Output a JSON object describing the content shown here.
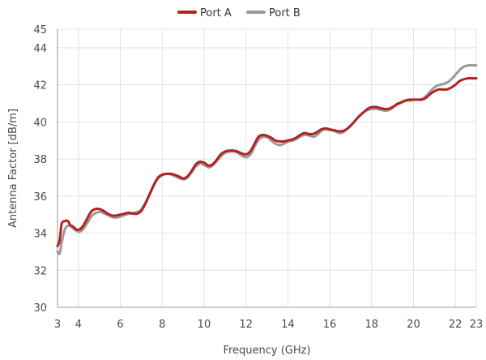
{
  "chart_data": {
    "type": "line",
    "title": "",
    "xlabel": "Frequency (GHz)",
    "ylabel": "Antenna Factor [dB/m]",
    "xlim": [
      3,
      23
    ],
    "ylim": [
      30,
      45
    ],
    "xticks": [
      3,
      4,
      6,
      8,
      10,
      12,
      14,
      16,
      18,
      20,
      22,
      23
    ],
    "yticks": [
      30,
      32,
      34,
      36,
      38,
      40,
      42,
      44,
      45
    ],
    "grid": true,
    "legend_position": "top-center",
    "series": [
      {
        "name": "Port A",
        "color": "#b22222",
        "points": [
          [
            3.0,
            33.3
          ],
          [
            3.1,
            33.6
          ],
          [
            3.2,
            34.5
          ],
          [
            3.35,
            34.65
          ],
          [
            3.5,
            34.65
          ],
          [
            3.6,
            34.45
          ],
          [
            3.75,
            34.35
          ],
          [
            3.9,
            34.2
          ],
          [
            4.05,
            34.2
          ],
          [
            4.2,
            34.35
          ],
          [
            4.4,
            34.75
          ],
          [
            4.6,
            35.15
          ],
          [
            4.8,
            35.3
          ],
          [
            5.0,
            35.3
          ],
          [
            5.2,
            35.2
          ],
          [
            5.4,
            35.05
          ],
          [
            5.6,
            34.95
          ],
          [
            5.8,
            34.95
          ],
          [
            6.0,
            35.0
          ],
          [
            6.2,
            35.05
          ],
          [
            6.4,
            35.1
          ],
          [
            6.6,
            35.05
          ],
          [
            6.8,
            35.05
          ],
          [
            7.0,
            35.2
          ],
          [
            7.2,
            35.6
          ],
          [
            7.4,
            36.1
          ],
          [
            7.6,
            36.6
          ],
          [
            7.8,
            37.0
          ],
          [
            8.0,
            37.15
          ],
          [
            8.2,
            37.2
          ],
          [
            8.4,
            37.2
          ],
          [
            8.6,
            37.15
          ],
          [
            8.8,
            37.05
          ],
          [
            9.0,
            36.95
          ],
          [
            9.2,
            37.05
          ],
          [
            9.4,
            37.35
          ],
          [
            9.6,
            37.7
          ],
          [
            9.8,
            37.85
          ],
          [
            10.0,
            37.8
          ],
          [
            10.2,
            37.65
          ],
          [
            10.4,
            37.7
          ],
          [
            10.6,
            37.95
          ],
          [
            10.8,
            38.25
          ],
          [
            11.0,
            38.4
          ],
          [
            11.2,
            38.45
          ],
          [
            11.4,
            38.45
          ],
          [
            11.6,
            38.4
          ],
          [
            11.8,
            38.3
          ],
          [
            12.0,
            38.25
          ],
          [
            12.2,
            38.4
          ],
          [
            12.4,
            38.8
          ],
          [
            12.6,
            39.2
          ],
          [
            12.8,
            39.3
          ],
          [
            13.0,
            39.25
          ],
          [
            13.2,
            39.15
          ],
          [
            13.4,
            39.0
          ],
          [
            13.6,
            38.95
          ],
          [
            13.8,
            38.95
          ],
          [
            14.0,
            39.0
          ],
          [
            14.2,
            39.05
          ],
          [
            14.4,
            39.15
          ],
          [
            14.6,
            39.3
          ],
          [
            14.8,
            39.4
          ],
          [
            15.0,
            39.35
          ],
          [
            15.2,
            39.35
          ],
          [
            15.4,
            39.45
          ],
          [
            15.6,
            39.6
          ],
          [
            15.8,
            39.65
          ],
          [
            16.0,
            39.6
          ],
          [
            16.2,
            39.55
          ],
          [
            16.4,
            39.5
          ],
          [
            16.6,
            39.5
          ],
          [
            16.8,
            39.6
          ],
          [
            17.0,
            39.8
          ],
          [
            17.2,
            40.05
          ],
          [
            17.4,
            40.3
          ],
          [
            17.6,
            40.5
          ],
          [
            17.8,
            40.7
          ],
          [
            18.0,
            40.8
          ],
          [
            18.2,
            40.8
          ],
          [
            18.4,
            40.75
          ],
          [
            18.6,
            40.7
          ],
          [
            18.8,
            40.7
          ],
          [
            19.0,
            40.8
          ],
          [
            19.2,
            40.95
          ],
          [
            19.4,
            41.05
          ],
          [
            19.6,
            41.15
          ],
          [
            19.8,
            41.2
          ],
          [
            20.0,
            41.2
          ],
          [
            20.2,
            41.2
          ],
          [
            20.4,
            41.2
          ],
          [
            20.6,
            41.3
          ],
          [
            20.8,
            41.5
          ],
          [
            21.0,
            41.65
          ],
          [
            21.2,
            41.75
          ],
          [
            21.4,
            41.75
          ],
          [
            21.6,
            41.75
          ],
          [
            21.8,
            41.85
          ],
          [
            22.0,
            42.0
          ],
          [
            22.2,
            42.2
          ],
          [
            22.4,
            42.3
          ],
          [
            22.6,
            42.35
          ],
          [
            22.8,
            42.35
          ],
          [
            23.0,
            42.35
          ]
        ]
      },
      {
        "name": "Port B",
        "color": "#999999",
        "points": [
          [
            3.0,
            33.0
          ],
          [
            3.1,
            32.9
          ],
          [
            3.2,
            33.5
          ],
          [
            3.35,
            34.2
          ],
          [
            3.5,
            34.4
          ],
          [
            3.65,
            34.35
          ],
          [
            3.8,
            34.2
          ],
          [
            3.95,
            34.1
          ],
          [
            4.1,
            34.1
          ],
          [
            4.25,
            34.25
          ],
          [
            4.45,
            34.6
          ],
          [
            4.65,
            34.95
          ],
          [
            4.85,
            35.1
          ],
          [
            5.05,
            35.15
          ],
          [
            5.25,
            35.05
          ],
          [
            5.45,
            34.95
          ],
          [
            5.65,
            34.85
          ],
          [
            5.85,
            34.85
          ],
          [
            6.05,
            34.9
          ],
          [
            6.25,
            35.0
          ],
          [
            6.45,
            35.05
          ],
          [
            6.65,
            35.1
          ],
          [
            6.85,
            35.15
          ],
          [
            7.05,
            35.35
          ],
          [
            7.25,
            35.75
          ],
          [
            7.45,
            36.2
          ],
          [
            7.65,
            36.7
          ],
          [
            7.85,
            37.0
          ],
          [
            8.05,
            37.15
          ],
          [
            8.25,
            37.2
          ],
          [
            8.45,
            37.15
          ],
          [
            8.65,
            37.05
          ],
          [
            8.85,
            36.95
          ],
          [
            9.05,
            36.9
          ],
          [
            9.25,
            37.05
          ],
          [
            9.45,
            37.35
          ],
          [
            9.65,
            37.65
          ],
          [
            9.85,
            37.75
          ],
          [
            10.05,
            37.65
          ],
          [
            10.25,
            37.55
          ],
          [
            10.45,
            37.7
          ],
          [
            10.65,
            37.95
          ],
          [
            10.85,
            38.2
          ],
          [
            11.05,
            38.35
          ],
          [
            11.25,
            38.4
          ],
          [
            11.45,
            38.4
          ],
          [
            11.65,
            38.3
          ],
          [
            11.85,
            38.15
          ],
          [
            12.05,
            38.1
          ],
          [
            12.25,
            38.3
          ],
          [
            12.45,
            38.75
          ],
          [
            12.65,
            39.1
          ],
          [
            12.85,
            39.2
          ],
          [
            13.05,
            39.15
          ],
          [
            13.25,
            38.95
          ],
          [
            13.45,
            38.8
          ],
          [
            13.65,
            38.75
          ],
          [
            13.85,
            38.85
          ],
          [
            14.05,
            38.95
          ],
          [
            14.25,
            39.0
          ],
          [
            14.45,
            39.1
          ],
          [
            14.65,
            39.25
          ],
          [
            14.85,
            39.3
          ],
          [
            15.05,
            39.25
          ],
          [
            15.25,
            39.2
          ],
          [
            15.45,
            39.35
          ],
          [
            15.65,
            39.55
          ],
          [
            15.85,
            39.6
          ],
          [
            16.05,
            39.55
          ],
          [
            16.25,
            39.5
          ],
          [
            16.45,
            39.4
          ],
          [
            16.65,
            39.45
          ],
          [
            16.85,
            39.65
          ],
          [
            17.05,
            39.85
          ],
          [
            17.25,
            40.1
          ],
          [
            17.45,
            40.35
          ],
          [
            17.65,
            40.55
          ],
          [
            17.85,
            40.65
          ],
          [
            18.05,
            40.7
          ],
          [
            18.25,
            40.7
          ],
          [
            18.45,
            40.65
          ],
          [
            18.65,
            40.6
          ],
          [
            18.85,
            40.65
          ],
          [
            19.05,
            40.8
          ],
          [
            19.25,
            40.95
          ],
          [
            19.45,
            41.05
          ],
          [
            19.65,
            41.15
          ],
          [
            19.85,
            41.15
          ],
          [
            20.05,
            41.2
          ],
          [
            20.25,
            41.2
          ],
          [
            20.45,
            41.25
          ],
          [
            20.65,
            41.45
          ],
          [
            20.85,
            41.7
          ],
          [
            21.05,
            41.9
          ],
          [
            21.25,
            42.0
          ],
          [
            21.45,
            42.05
          ],
          [
            21.65,
            42.15
          ],
          [
            21.85,
            42.35
          ],
          [
            22.05,
            42.6
          ],
          [
            22.25,
            42.85
          ],
          [
            22.45,
            43.0
          ],
          [
            22.65,
            43.05
          ],
          [
            22.85,
            43.05
          ],
          [
            23.0,
            43.05
          ]
        ]
      }
    ]
  }
}
